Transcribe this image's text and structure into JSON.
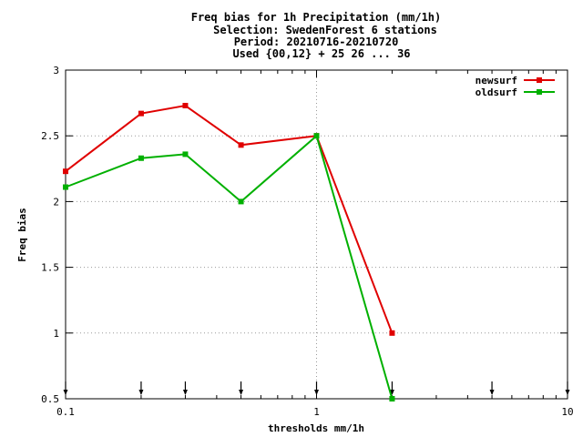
{
  "chart_data": {
    "type": "line",
    "title_lines": [
      "Freq bias  for 1h Precipitation (mm/1h)",
      "Selection: SwedenForest      6 stations",
      "Period: 20210716-20210720",
      "Used {00,12} + 25 26 ... 36"
    ],
    "xlabel": "thresholds mm/1h",
    "ylabel": "Freq bias",
    "xscale": "log",
    "xlim": [
      0.1,
      10
    ],
    "ylim": [
      0.5,
      3
    ],
    "xticks": [
      0.1,
      1,
      10
    ],
    "xtick_labels": [
      "0.1",
      "1",
      "10"
    ],
    "yticks": [
      0.5,
      1,
      1.5,
      2,
      2.5,
      3
    ],
    "ytick_labels": [
      "0.5",
      "1",
      "1.5",
      "2",
      "2.5",
      "3"
    ],
    "grid": true,
    "legend_position": "top-right",
    "threshold_markers": [
      0.1,
      0.2,
      0.3,
      0.5,
      1,
      2,
      5,
      10
    ],
    "series": [
      {
        "name": "newsurf",
        "color": "#e00000",
        "x": [
          0.1,
          0.2,
          0.3,
          0.5,
          1,
          2
        ],
        "y": [
          2.23,
          2.67,
          2.73,
          2.43,
          2.5,
          1.0
        ]
      },
      {
        "name": "oldsurf",
        "color": "#00b000",
        "x": [
          0.1,
          0.2,
          0.3,
          0.5,
          1,
          2
        ],
        "y": [
          2.11,
          2.33,
          2.36,
          2.0,
          2.5,
          0.5
        ]
      }
    ]
  }
}
